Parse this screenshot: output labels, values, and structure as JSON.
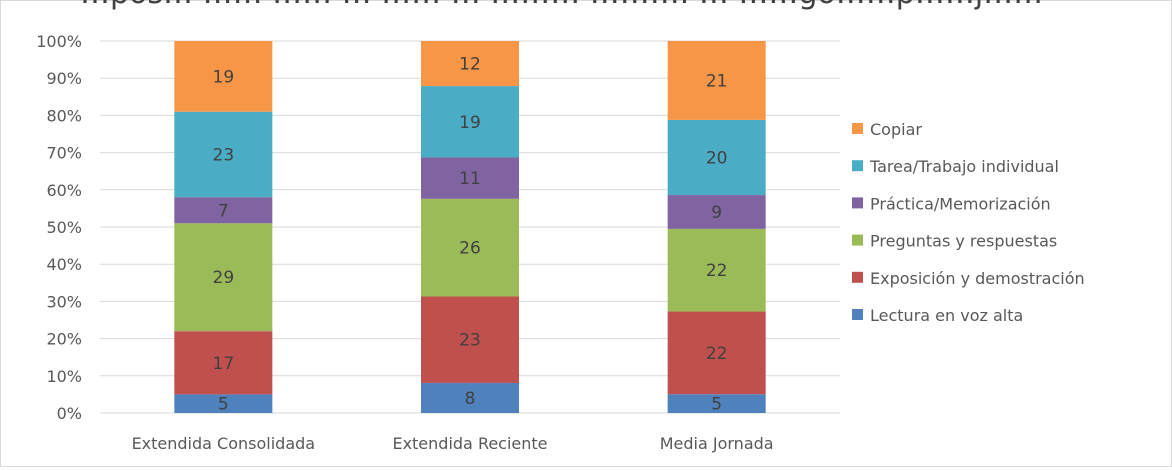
{
  "chart_data": {
    "type": "bar",
    "stacked": true,
    "percent_stacked": true,
    "title": "…pos… …… …… … …… … ……… ………. … ……gó……p……j……",
    "categories": [
      "Extendida Consolidada",
      "Extendida Reciente",
      "Media Jornada"
    ],
    "series": [
      {
        "name": "Lectura en voz alta",
        "values": [
          5,
          8,
          5
        ],
        "color": "#4f81bd"
      },
      {
        "name": "Exposición y demostración",
        "values": [
          17,
          23,
          22
        ],
        "color": "#c0504d"
      },
      {
        "name": "Preguntas y respuestas",
        "values": [
          29,
          26,
          22
        ],
        "color": "#9bbb59"
      },
      {
        "name": "Práctica/Memorización",
        "values": [
          7,
          11,
          9
        ],
        "color": "#8064a2"
      },
      {
        "name": "Tarea/Trabajo individual",
        "values": [
          23,
          19,
          20
        ],
        "color": "#4bacc6"
      },
      {
        "name": "Copiar",
        "values": [
          19,
          12,
          21
        ],
        "color": "#f79646"
      }
    ],
    "yticks": [
      "0%",
      "10%",
      "20%",
      "30%",
      "40%",
      "50%",
      "60%",
      "70%",
      "80%",
      "90%",
      "100%"
    ],
    "ylim": [
      0,
      100
    ],
    "grid": true,
    "legend_position": "right",
    "legend_order": "reverse"
  }
}
